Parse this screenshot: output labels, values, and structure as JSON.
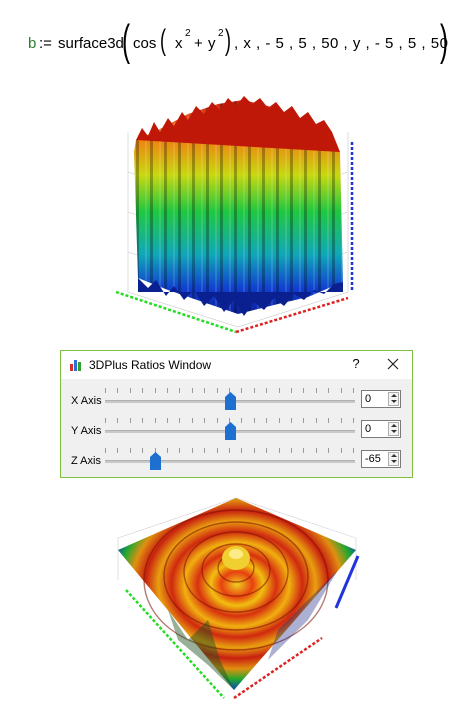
{
  "formula": {
    "var": "b",
    "assign": ":=",
    "func": "surface3d",
    "cos": "cos",
    "x": "x",
    "y": "y",
    "exp": "2",
    "plus": "+",
    "args": ", x , - 5 , 5 , 50 , y , - 5 , 5 , 50"
  },
  "dialog": {
    "title": "3DPlus Ratios Window",
    "help": "?",
    "rows": [
      {
        "label": "X Axis",
        "value": "0",
        "level": 0.5
      },
      {
        "label": "Y Axis",
        "value": "0",
        "level": 0.5
      },
      {
        "label": "Z Axis",
        "value": "-65",
        "level": 0.2
      }
    ]
  },
  "colors": {
    "formula_var": "#2a7f2a",
    "dialog_border": "#7fbf3f",
    "thumb": "#1e6fd0",
    "axis_x": "#22dd22",
    "axis_y": "#dd2222",
    "axis_z": "#2233dd"
  },
  "icons": {
    "app": "chart-app-icon",
    "close": "close-icon"
  }
}
